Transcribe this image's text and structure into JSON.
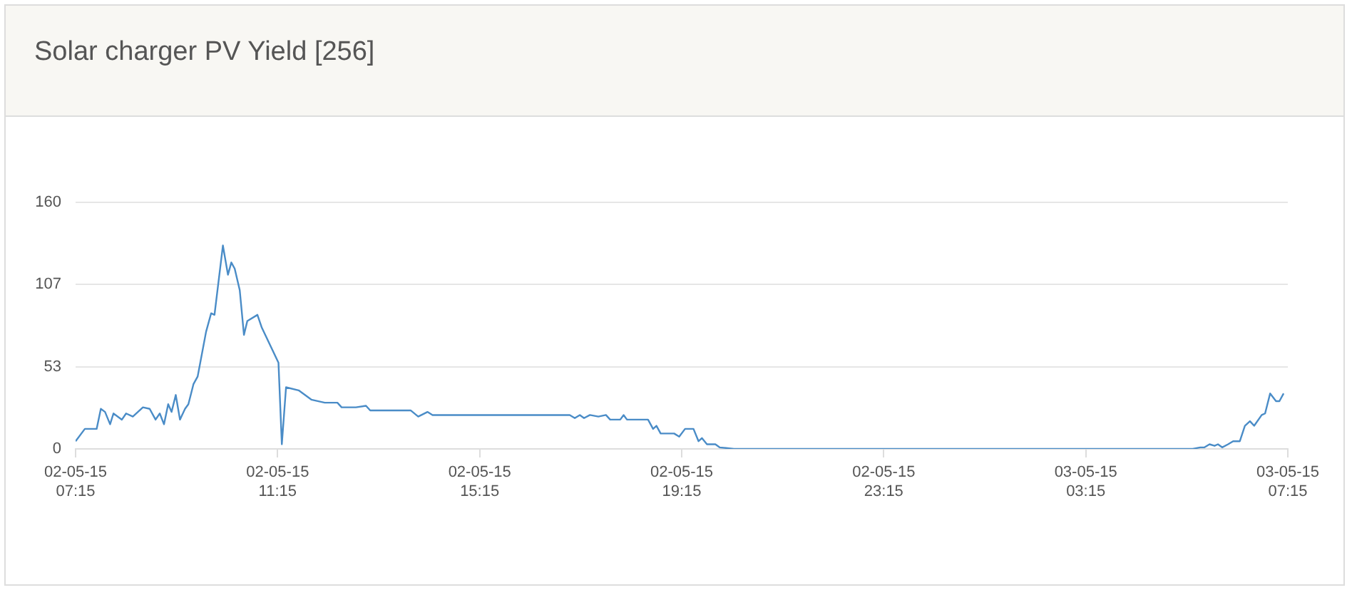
{
  "chart_data": {
    "type": "line",
    "title": "Solar charger PV Yield [256]",
    "x": [
      "--05-02T07:15",
      "--05-02T07:26",
      "--05-02T07:40",
      "--05-02T07:45",
      "--05-02T07:50",
      "--05-02T07:56",
      "--05-02T08:00",
      "--05-02T08:10",
      "--05-02T08:15",
      "--05-02T08:23",
      "--05-02T08:35",
      "--05-02T08:43",
      "--05-02T08:50",
      "--05-02T08:55",
      "--05-02T09:00",
      "--05-02T09:05",
      "--05-02T09:09",
      "--05-02T09:14",
      "--05-02T09:19",
      "--05-02T09:25",
      "--05-02T09:29",
      "--05-02T09:35",
      "--05-02T09:40",
      "--05-02T09:50",
      "--05-02T09:56",
      "--05-02T10:00",
      "--05-02T10:10",
      "--05-02T10:16",
      "--05-02T10:20",
      "--05-02T10:24",
      "--05-02T10:30",
      "--05-02T10:35",
      "--05-02T10:39",
      "--05-02T10:51",
      "--05-02T10:56",
      "--05-02T11:16",
      "--05-02T11:20",
      "--05-02T11:25",
      "--05-02T11:40",
      "--05-02T11:55",
      "--05-02T12:11",
      "--05-02T12:26",
      "--05-02T12:31",
      "--05-02T12:48",
      "--05-02T13:00",
      "--05-02T13:05",
      "--05-02T13:53",
      "--05-02T14:02",
      "--05-02T14:13",
      "--05-02T14:19",
      "--05-02T17:02",
      "--05-02T17:08",
      "--05-02T17:14",
      "--05-02T17:19",
      "--05-02T17:26",
      "--05-02T17:36",
      "--05-02T17:45",
      "--05-02T17:50",
      "--05-02T18:02",
      "--05-02T18:06",
      "--05-02T18:10",
      "--05-02T18:35",
      "--05-02T18:41",
      "--05-02T18:45",
      "--05-02T18:50",
      "--05-02T19:06",
      "--05-02T19:12",
      "--05-02T19:19",
      "--05-02T19:29",
      "--05-02T19:35",
      "--05-02T19:39",
      "--05-02T19:45",
      "--05-02T19:55",
      "--05-02T20:00",
      "--05-02T20:17",
      "--05-03T05:22",
      "--05-03T05:31",
      "--05-03T05:36",
      "--05-03T05:42",
      "--05-03T05:48",
      "--05-03T05:52",
      "--05-03T05:57",
      "--05-03T06:04",
      "--05-03T06:10",
      "--05-03T06:18",
      "--05-03T06:24",
      "--05-03T06:30",
      "--05-03T06:35",
      "--05-03T06:44",
      "--05-03T06:48",
      "--05-03T06:54",
      "--05-03T07:01",
      "--05-03T07:05",
      "--05-03T07:10"
    ],
    "series": [
      {
        "color": "#4a8cc7",
        "values": [
          5,
          13,
          13,
          26,
          24,
          16,
          23,
          19,
          23,
          21,
          27,
          26,
          19,
          23,
          16,
          29,
          24,
          35,
          19,
          26,
          29,
          42,
          47,
          76,
          88,
          87,
          132,
          113,
          121,
          117,
          103,
          74,
          83,
          87,
          79,
          56,
          3,
          40,
          38,
          32,
          30,
          30,
          27,
          27,
          28,
          25,
          25,
          21,
          24,
          22,
          22,
          20,
          22,
          20,
          22,
          21,
          22,
          19,
          19,
          22,
          19,
          19,
          13,
          15,
          10,
          10,
          8,
          13,
          13,
          5,
          7,
          3,
          3,
          1,
          0,
          0,
          1,
          1,
          3,
          2,
          3,
          1,
          3,
          5,
          5,
          15,
          18,
          15,
          22,
          23,
          36,
          31,
          31,
          36
        ]
      }
    ],
    "xlim": [
      "--05-02T07:15",
      "--05-03T07:15"
    ],
    "xticks": [
      {
        "value": "--05-02T07:15",
        "label": "02-05-15 07:15"
      },
      {
        "value": "--05-02T11:15",
        "label": "02-05-15 11:15"
      },
      {
        "value": "--05-02T15:15",
        "label": "02-05-15 15:15"
      },
      {
        "value": "--05-02T19:15",
        "label": "02-05-15 19:15"
      },
      {
        "value": "--05-02T23:15",
        "label": "02-05-15 23:15"
      },
      {
        "value": "--05-03T03:15",
        "label": "03-05-15 03:15"
      },
      {
        "value": "--05-03T07:15",
        "label": "03-05-15 07:15"
      }
    ],
    "ylim": [
      0,
      160
    ],
    "yticks": [
      0,
      53,
      107,
      160
    ],
    "grid": "y",
    "marker": "none",
    "line_style": "solid"
  }
}
